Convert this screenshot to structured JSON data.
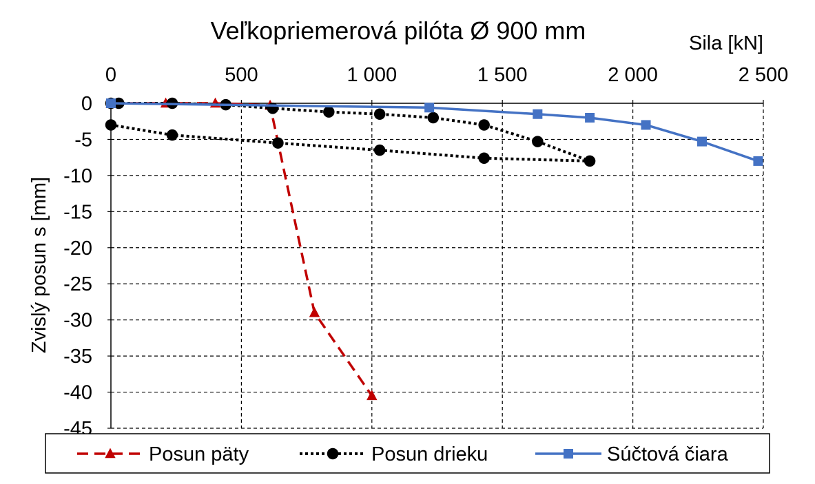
{
  "chart_data": {
    "type": "line",
    "title": "Veľkopriemerová pilóta Ø 900 mm",
    "xlabel": "Sila [kN]",
    "ylabel": "Zvislý posun s [mm]",
    "x_position": "top",
    "xlim": [
      0,
      2500
    ],
    "ylim": [
      -45,
      0
    ],
    "x_ticks": [
      0,
      500,
      1000,
      1500,
      2000,
      2500
    ],
    "x_tick_labels": [
      "0",
      "500",
      "1 000",
      "1 500",
      "2 000",
      "2 500"
    ],
    "y_ticks": [
      0,
      -5,
      -10,
      -15,
      -20,
      -25,
      -30,
      -35,
      -40,
      -45
    ],
    "y_tick_labels": [
      "0",
      "-5",
      "-10",
      "-15",
      "-20",
      "-25",
      "-30",
      "-35",
      "-40",
      "-45"
    ],
    "grid": true,
    "legend_position": "bottom",
    "series": [
      {
        "name": "Posun päty",
        "color": "#C00000",
        "line_style": "dashed",
        "marker": "triangle",
        "x": [
          0,
          210,
          400,
          610,
          780,
          1000
        ],
        "y": [
          0,
          0,
          0,
          -0.3,
          -29,
          -40.5
        ]
      },
      {
        "name": "Posun drieku",
        "color": "#000000",
        "line_style": "dotted",
        "marker": "circle",
        "x": [
          0,
          30,
          235,
          440,
          620,
          835,
          1030,
          1235,
          1430,
          1635,
          1835,
          1430,
          1030,
          640,
          235,
          0
        ],
        "y": [
          0,
          0,
          0,
          -0.2,
          -0.7,
          -1.2,
          -1.5,
          -2,
          -3,
          -5.3,
          -8,
          -7.6,
          -6.5,
          -5.5,
          -4.4,
          -3
        ]
      },
      {
        "name": "Súčtová čiara",
        "color": "#4472C4",
        "line_style": "solid",
        "marker": "square",
        "x": [
          0,
          1220,
          1635,
          1835,
          2050,
          2265,
          2480
        ],
        "y": [
          0,
          -0.6,
          -1.5,
          -2,
          -3,
          -5.3,
          -8
        ]
      }
    ]
  }
}
